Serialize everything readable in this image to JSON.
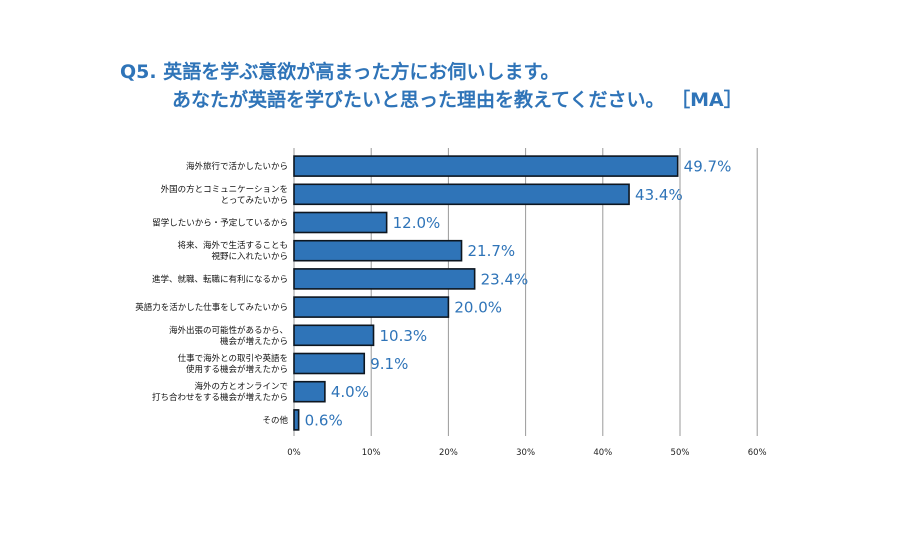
{
  "title": {
    "line1": "Q5.  英語を学ぶ意欲が高まった方にお伺いします。",
    "line2": "あなたが英語を学びたいと思った理由を教えてください。 ［MA］"
  },
  "colors": {
    "accent": "#2f74b8",
    "bar_fill": "#2f74b8",
    "bar_stroke": "#0d1620",
    "grid": "#9a9a9a"
  },
  "chart_data": {
    "type": "bar",
    "orientation": "horizontal",
    "title": "Q5.  英語を学ぶ意欲が高まった方にお伺いします。 あなたが英語を学びたいと思った理由を教えてください。 ［MA］",
    "categories": [
      [
        "海外旅行で活かしたいから"
      ],
      [
        "外国の方とコミュニケーションを",
        "とってみたいから"
      ],
      [
        "留学したいから・予定しているから"
      ],
      [
        "将来、海外で生活することも",
        "視野に入れたいから"
      ],
      [
        "進学、就職、転職に有利になるから"
      ],
      [
        "英語力を活かした仕事をしてみたいから"
      ],
      [
        "海外出張の可能性があるから、",
        "機会が増えたから"
      ],
      [
        "仕事で海外との取引や英語を",
        "使用する機会が増えたから"
      ],
      [
        "海外の方とオンラインで",
        "打ち合わせをする機会が増えたから"
      ],
      [
        "その他"
      ]
    ],
    "values": [
      49.7,
      43.4,
      12.0,
      21.7,
      23.4,
      20.0,
      10.3,
      9.1,
      4.0,
      0.6
    ],
    "value_labels": [
      "49.7%",
      "43.4%",
      "12.0%",
      "21.7%",
      "23.4%",
      "20.0%",
      "10.3%",
      "9.1%",
      "4.0%",
      "0.6%"
    ],
    "x_ticks": [
      0,
      10,
      20,
      30,
      40,
      50,
      60
    ],
    "x_tick_labels": [
      "0%",
      "10%",
      "20%",
      "30%",
      "40%",
      "50%",
      "60%"
    ],
    "xlim": [
      0,
      60
    ],
    "grid": true,
    "legend": false
  }
}
